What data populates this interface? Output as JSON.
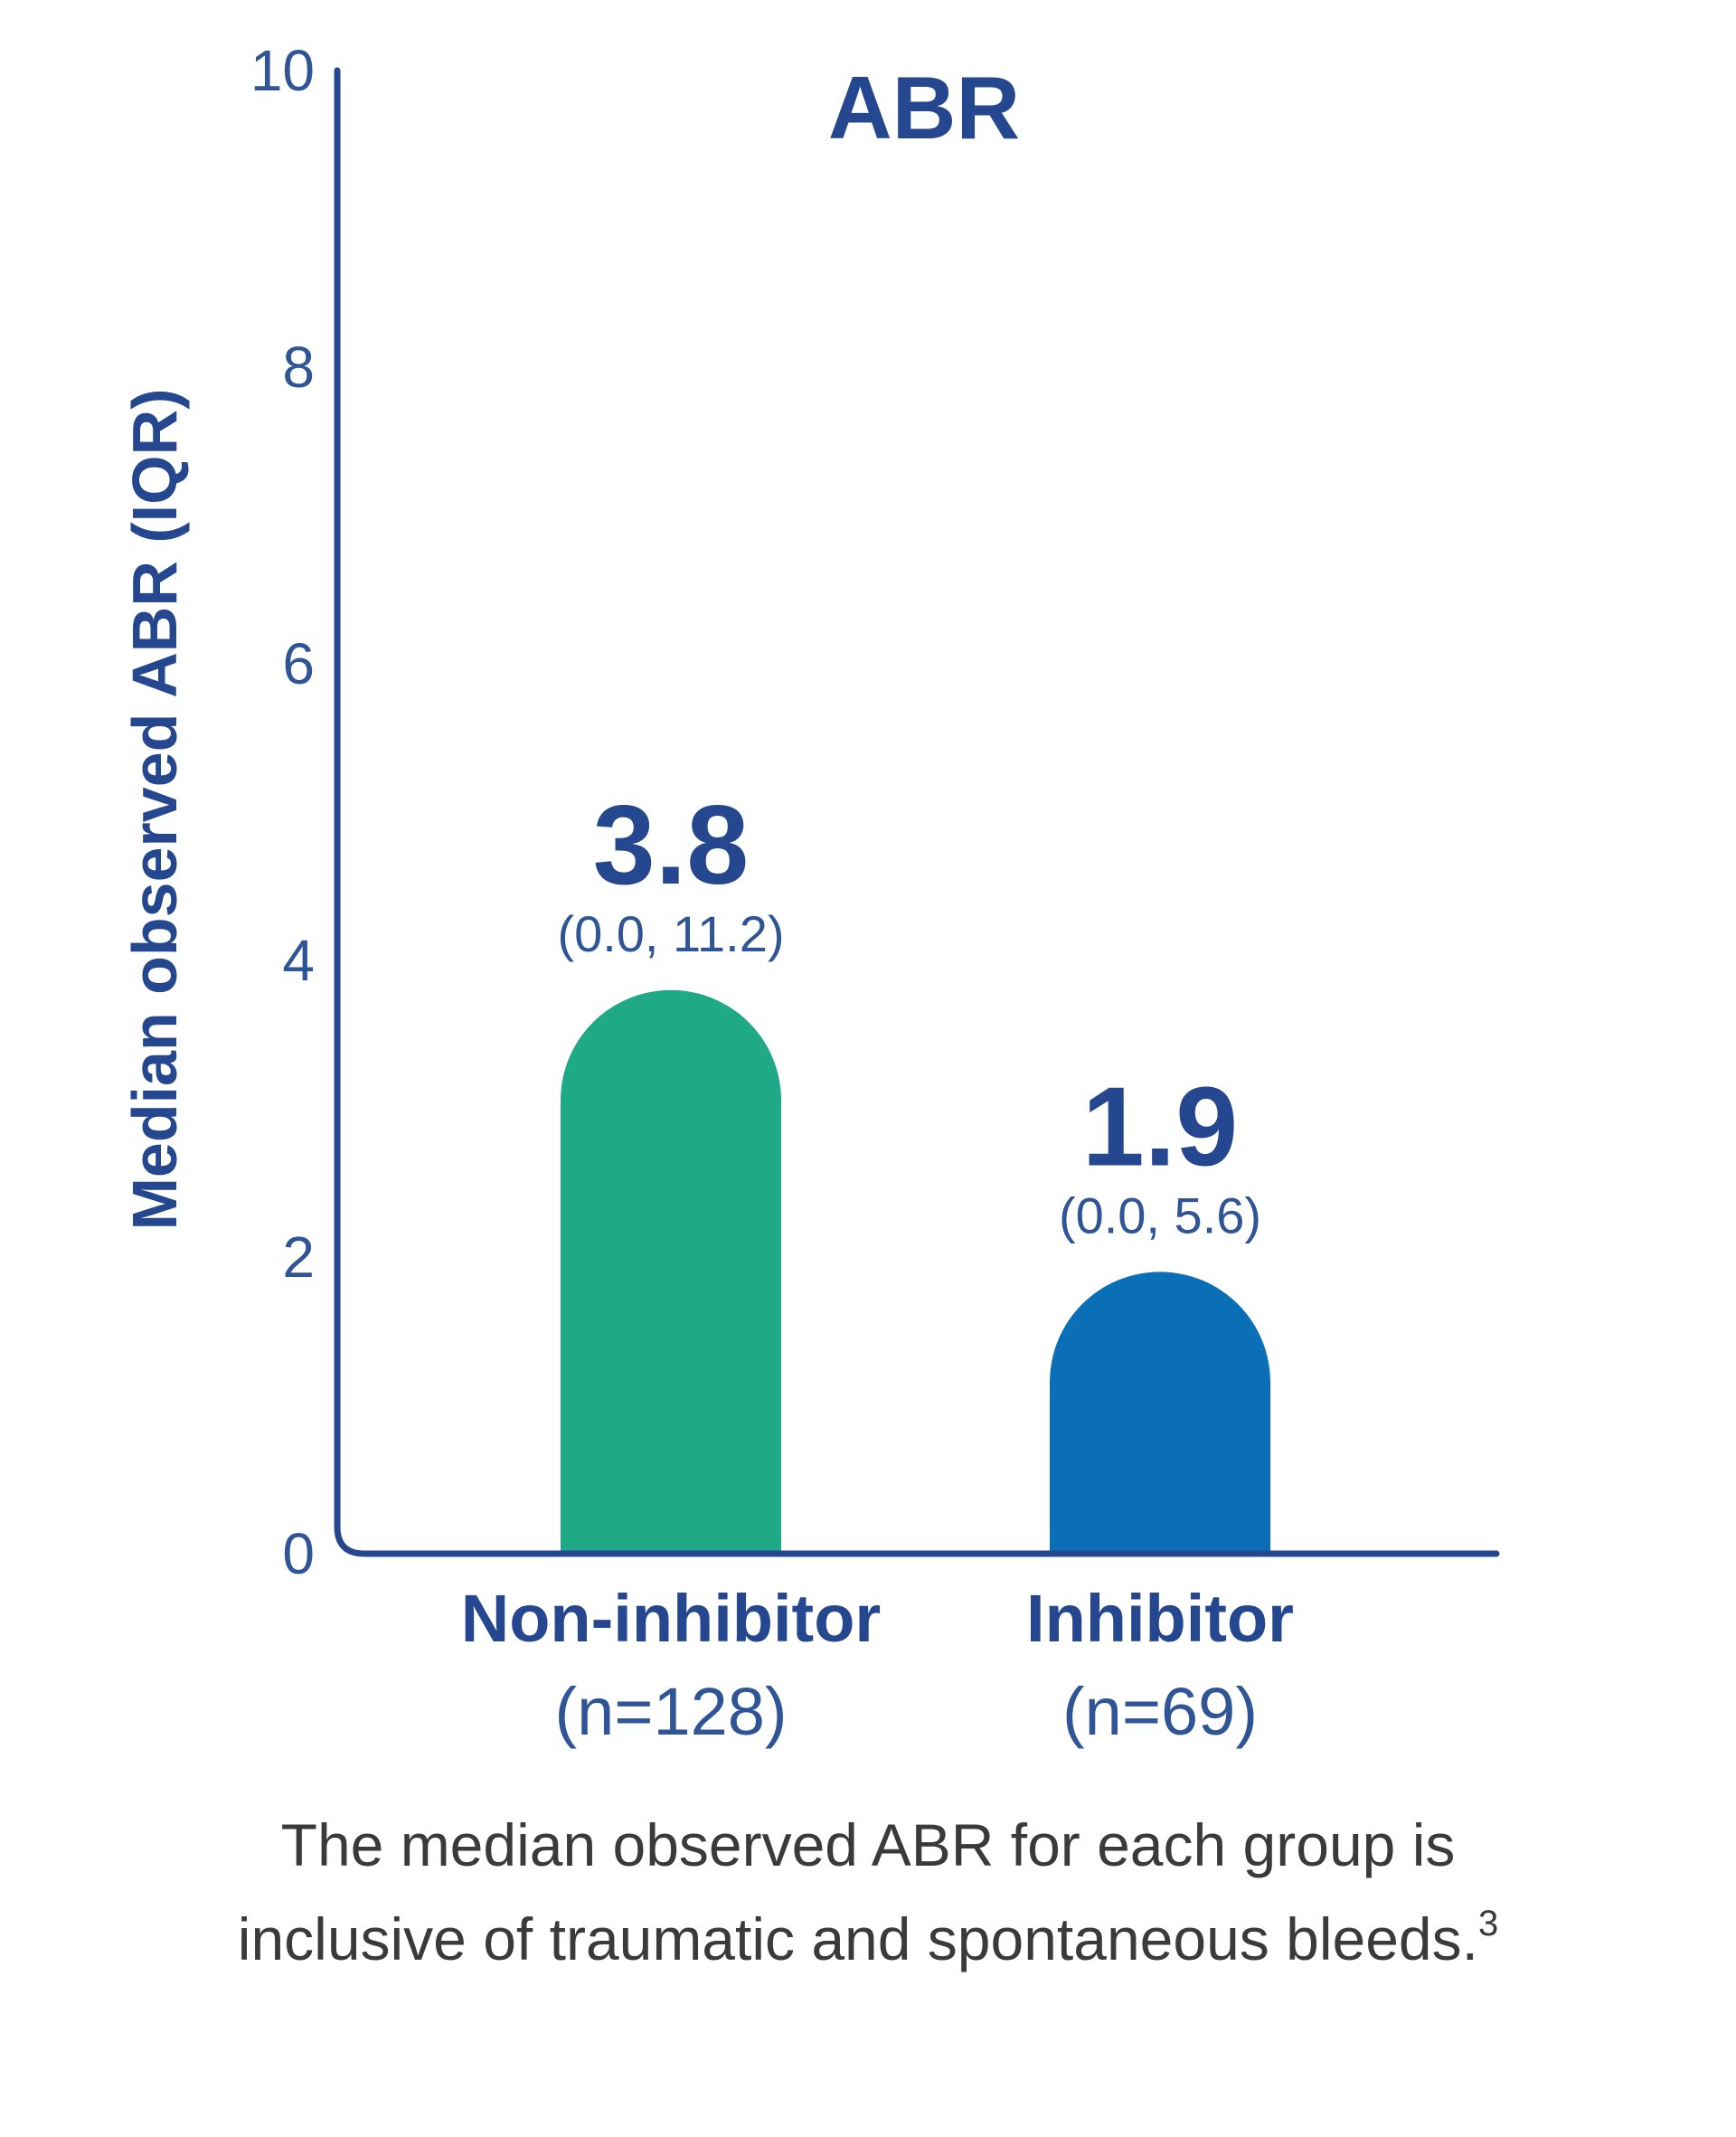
{
  "colors": {
    "axis": "#24478f",
    "text_dark": "#24478f",
    "text_light": "#2f5597",
    "footnote": "#3a3a3a"
  },
  "chart_data": {
    "type": "bar",
    "title": "ABR",
    "ylabel": "Median observed ABR (IQR)",
    "ylim": [
      0,
      10
    ],
    "yticks": [
      "0",
      "2",
      "4",
      "6",
      "8",
      "10"
    ],
    "categories": [
      "Non-inhibitor",
      "Inhibitor"
    ],
    "category_subtitles": [
      "(n=128)",
      "(n=69)"
    ],
    "values": [
      3.8,
      1.9
    ],
    "value_labels": [
      "3.8",
      "1.9"
    ],
    "iqr_labels": [
      "(0.0, 11.2)",
      "(0.0, 5.6)"
    ],
    "iqr": [
      [
        0.0,
        11.2
      ],
      [
        0.0,
        5.6
      ]
    ],
    "bar_colors": [
      "#20a986",
      "#0a6fb7"
    ]
  },
  "footnote": {
    "line1": "The median observed ABR for each group is",
    "line2": "inclusive of traumatic and spontaneous bleeds.",
    "ref": "3"
  }
}
